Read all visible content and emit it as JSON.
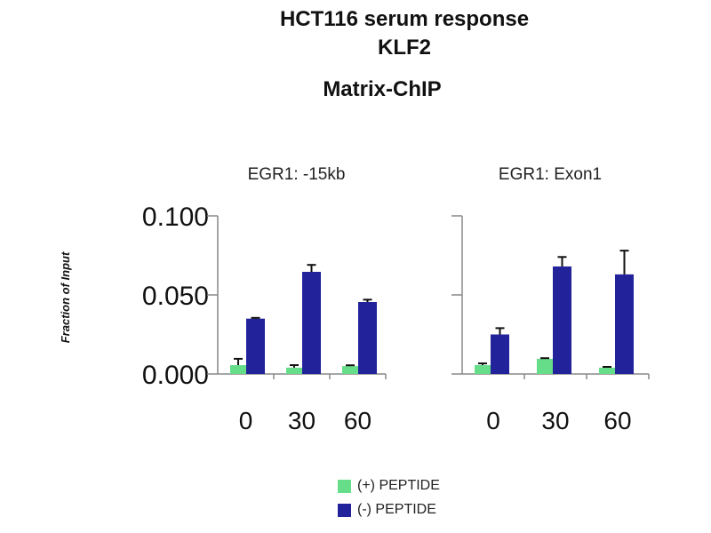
{
  "chart_data": [
    {
      "type": "bar",
      "title": "HCT116 serum response KLF2 Matrix-ChIP",
      "title_lines": [
        "HCT116 serum response",
        "KLF2",
        "Matrix-ChIP"
      ],
      "panels": [
        {
          "subtitle": "EGR1: -15kb",
          "categories": [
            "0",
            "30",
            "60"
          ],
          "series": [
            {
              "name": "(+) PEPTIDE",
              "color": "#66dd88",
              "values": [
                0.0056,
                0.004,
                0.005
              ],
              "errors": [
                0.004,
                0.0016,
                0.0005
              ]
            },
            {
              "name": "(-) PEPTIDE",
              "color": "#22229a",
              "values": [
                0.035,
                0.0646,
                0.0455
              ],
              "errors": [
                0.0005,
                0.0044,
                0.0015
              ]
            }
          ]
        },
        {
          "subtitle": "EGR1: Exon1",
          "categories": [
            "0",
            "30",
            "60"
          ],
          "series": [
            {
              "name": "(+) PEPTIDE",
              "color": "#66dd88",
              "values": [
                0.0056,
                0.0096,
                0.004
              ],
              "errors": [
                0.0011,
                0.0004,
                0.0005
              ]
            },
            {
              "name": "(-) PEPTIDE",
              "color": "#22229a",
              "values": [
                0.025,
                0.068,
                0.063
              ],
              "errors": [
                0.004,
                0.006,
                0.015
              ]
            }
          ]
        }
      ],
      "ylabel": "Fraction of Input",
      "ylim": [
        0,
        0.1
      ],
      "yticks": [
        "0.000",
        "0.050",
        "0.100"
      ],
      "ytick_values": [
        0,
        0.05,
        0.1
      ],
      "grid": false,
      "legend": {
        "position": "bottom",
        "entries": [
          "(+) PEPTIDE",
          "(-) PEPTIDE"
        ]
      }
    }
  ]
}
